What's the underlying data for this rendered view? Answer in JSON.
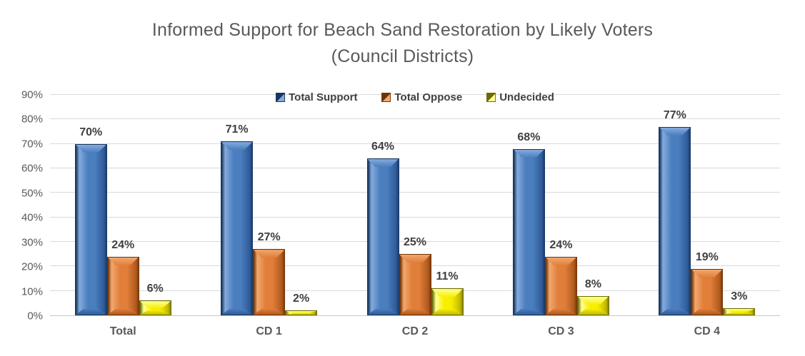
{
  "chart_data": {
    "type": "bar",
    "title": "Informed Support for Beach Sand Restoration by Likely Voters",
    "subtitle": "(Council Districts)",
    "categories": [
      "Total",
      "CD 1",
      "CD 2",
      "CD 3",
      "CD 4"
    ],
    "series": [
      {
        "name": "Total Support",
        "values": [
          70,
          71,
          64,
          68,
          77
        ],
        "colors": {
          "main": "#4a7ebe",
          "light": "#85abdd",
          "shade": "#2f5b9a",
          "edge": "#17375e"
        }
      },
      {
        "name": "Total Oppose",
        "values": [
          24,
          27,
          25,
          24,
          19
        ],
        "colors": {
          "main": "#e07e3a",
          "light": "#f2a86e",
          "shade": "#b05a1d",
          "edge": "#6e3408"
        }
      },
      {
        "name": "Undecided",
        "values": [
          6,
          2,
          11,
          8,
          3
        ],
        "colors": {
          "main": "#f7ef00",
          "light": "#ffff9c",
          "shade": "#c2b800",
          "edge": "#6b6b00"
        }
      }
    ],
    "value_suffix": "%",
    "ylim": [
      0,
      90
    ],
    "ytick_step": 10,
    "ytick_labels": [
      "0%",
      "10%",
      "20%",
      "30%",
      "40%",
      "50%",
      "60%",
      "70%",
      "80%",
      "90%"
    ],
    "grid": true,
    "legend_position": "top-center"
  },
  "styles": {
    "title_color": "#595959",
    "data_label_color": "#3f3f3f",
    "axis_label_color": "#595959",
    "gridline_color": "#d9d9d9",
    "background": "#ffffff"
  }
}
